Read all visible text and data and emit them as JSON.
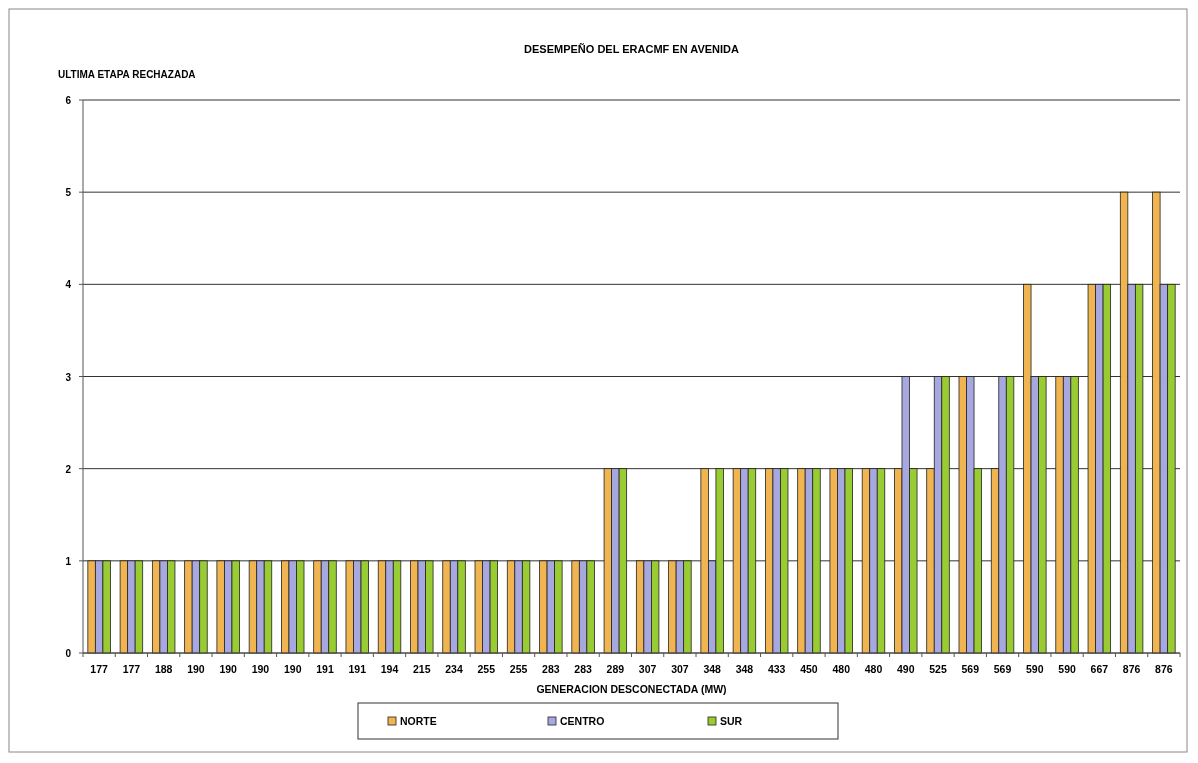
{
  "chart_data": {
    "type": "bar",
    "title": "DESEMPEÑO DEL ERACMF EN AVENIDA",
    "ylabel": "ULTIMA ETAPA RECHAZADA",
    "xlabel": "GENERACION DESCONECTADA (MW)",
    "categories": [
      "177",
      "177",
      "188",
      "190",
      "190",
      "190",
      "190",
      "191",
      "191",
      "194",
      "215",
      "234",
      "255",
      "255",
      "283",
      "283",
      "289",
      "307",
      "307",
      "348",
      "348",
      "433",
      "450",
      "480",
      "480",
      "490",
      "525",
      "569",
      "569",
      "590",
      "590",
      "667",
      "876",
      "876"
    ],
    "series": [
      {
        "name": "NORTE",
        "color": "#f0b450",
        "values": [
          1,
          1,
          1,
          1,
          1,
          1,
          1,
          1,
          1,
          1,
          1,
          1,
          1,
          1,
          1,
          1,
          2,
          1,
          1,
          2,
          2,
          2,
          2,
          2,
          2,
          2,
          2,
          3,
          2,
          4,
          3,
          4,
          5,
          5
        ]
      },
      {
        "name": "CENTRO",
        "color": "#a8a8e0",
        "values": [
          1,
          1,
          1,
          1,
          1,
          1,
          1,
          1,
          1,
          1,
          1,
          1,
          1,
          1,
          1,
          1,
          2,
          1,
          1,
          1,
          2,
          2,
          2,
          2,
          2,
          3,
          3,
          3,
          3,
          3,
          3,
          4,
          4,
          4
        ]
      },
      {
        "name": "SUR",
        "color": "#99cc33",
        "values": [
          1,
          1,
          1,
          1,
          1,
          1,
          1,
          1,
          1,
          1,
          1,
          1,
          1,
          1,
          1,
          1,
          2,
          1,
          1,
          2,
          2,
          2,
          2,
          2,
          2,
          2,
          3,
          2,
          3,
          3,
          3,
          4,
          4,
          4
        ]
      }
    ],
    "ylim": [
      0,
      6
    ],
    "yticks": [
      0,
      1,
      2,
      3,
      4,
      5,
      6
    ],
    "grid": "y",
    "legend": "bottom"
  }
}
